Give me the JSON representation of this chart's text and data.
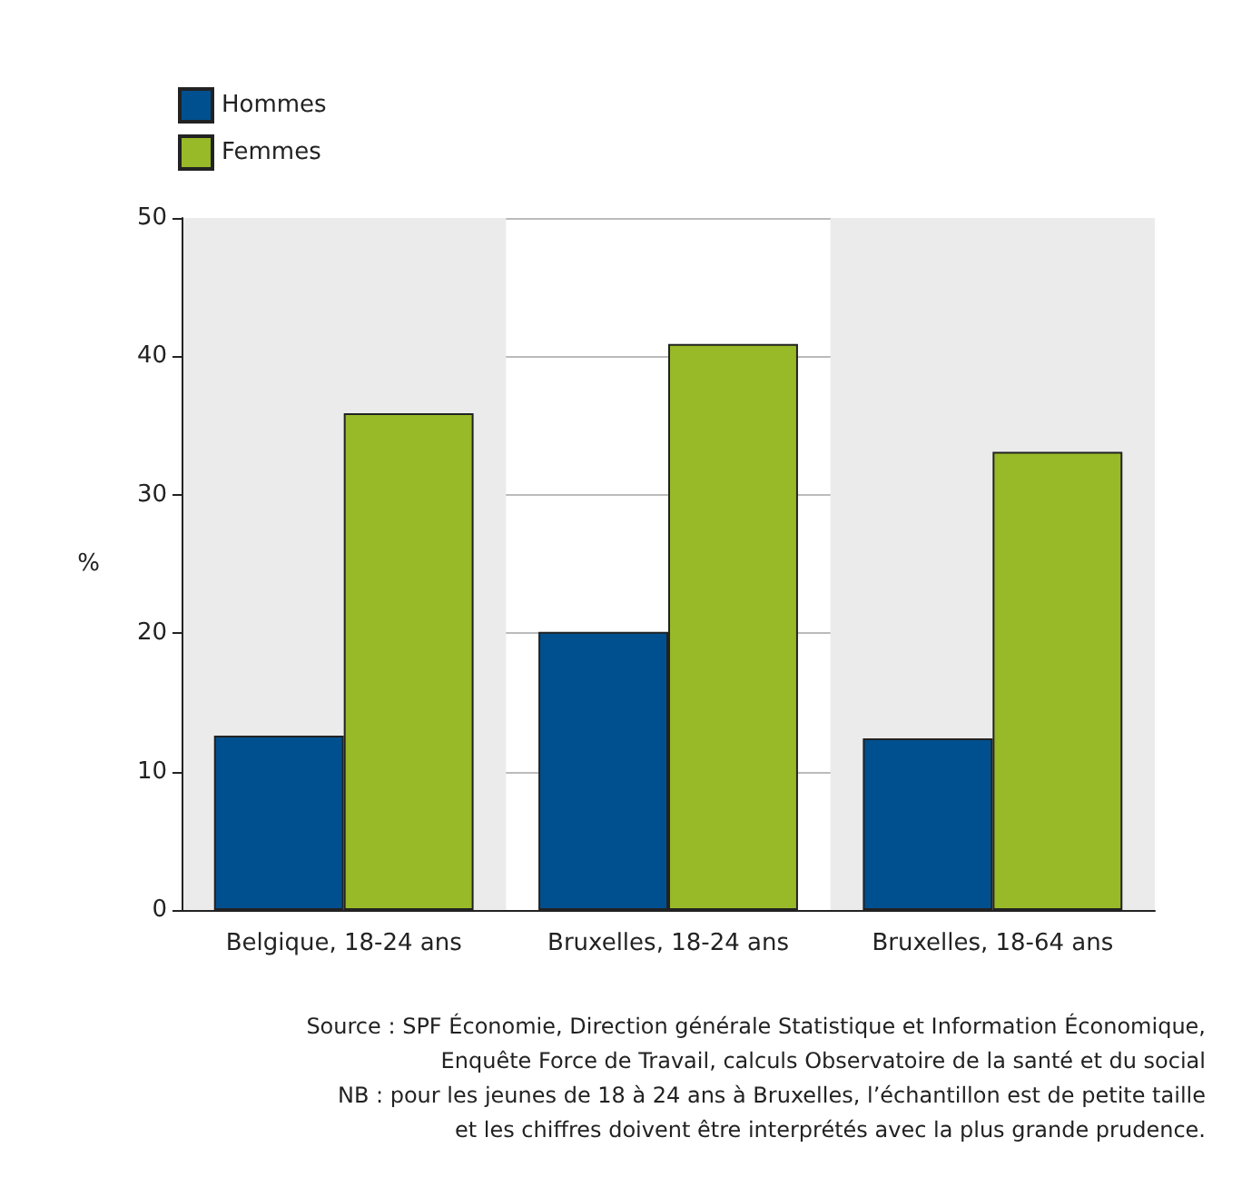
{
  "chart_data": {
    "type": "bar",
    "ylabel": "%",
    "categories": [
      "Belgique, 18-24 ans",
      "Bruxelles, 18-24 ans",
      "Bruxelles, 18-64 ans"
    ],
    "series": [
      {
        "name": "Hommes",
        "color": "#00508f",
        "values": [
          12.6,
          20.1,
          12.4
        ]
      },
      {
        "name": "Femmes",
        "color": "#98b928",
        "values": [
          35.9,
          40.9,
          33.1
        ]
      }
    ],
    "ylim": [
      0,
      50
    ],
    "yticks": [
      0,
      10,
      20,
      30,
      40,
      50
    ],
    "grid": "y",
    "legend": "top left",
    "annotations": [
      "Source : SPF Économie, Direction générale Statistique et Information Économique,",
      "Enquête Force de Travail, calculs Observatoire de la santé et du social",
      "NB : pour les jeunes de 18 à 24 ans à Bruxelles, l’échantillon est de petite taille",
      "et les chiffres doivent être interprétés avec la plus grande prudence."
    ]
  }
}
